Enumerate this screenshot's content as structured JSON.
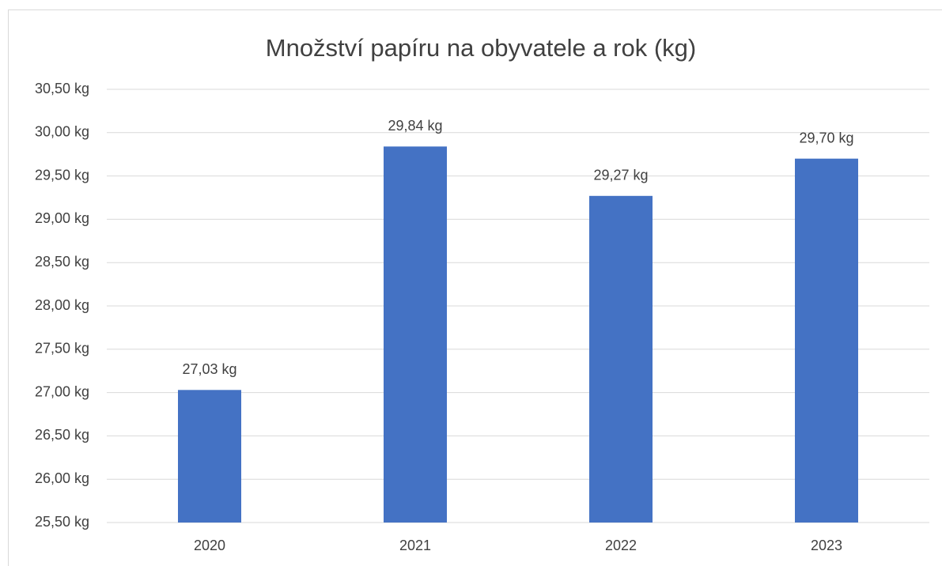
{
  "chart_data": {
    "type": "bar",
    "title": "Množství papíru na obyvatele a rok (kg)",
    "categories": [
      "2020",
      "2021",
      "2022",
      "2023"
    ],
    "values": [
      27.03,
      29.84,
      29.27,
      29.7
    ],
    "value_labels": [
      "27,03 kg",
      "29,84 kg",
      "29,27 kg",
      "29,70 kg"
    ],
    "color": "#4472c4",
    "ylim": [
      25.5,
      30.5
    ],
    "yticks": [
      {
        "value": 25.5,
        "label": "25,50 kg"
      },
      {
        "value": 26,
        "label": "26,00 kg"
      },
      {
        "value": 26.5,
        "label": "26,50 kg"
      },
      {
        "value": 27,
        "label": "27,00 kg"
      },
      {
        "value": 27.5,
        "label": "27,50 kg"
      },
      {
        "value": 28,
        "label": "28,00 kg"
      },
      {
        "value": 28.5,
        "label": "28,50 kg"
      },
      {
        "value": 29,
        "label": "29,00 kg"
      },
      {
        "value": 29.5,
        "label": "29,50 kg"
      },
      {
        "value": 30,
        "label": "30,00 kg"
      },
      {
        "value": 30.5,
        "label": "30,50 kg"
      }
    ],
    "grid": true
  }
}
